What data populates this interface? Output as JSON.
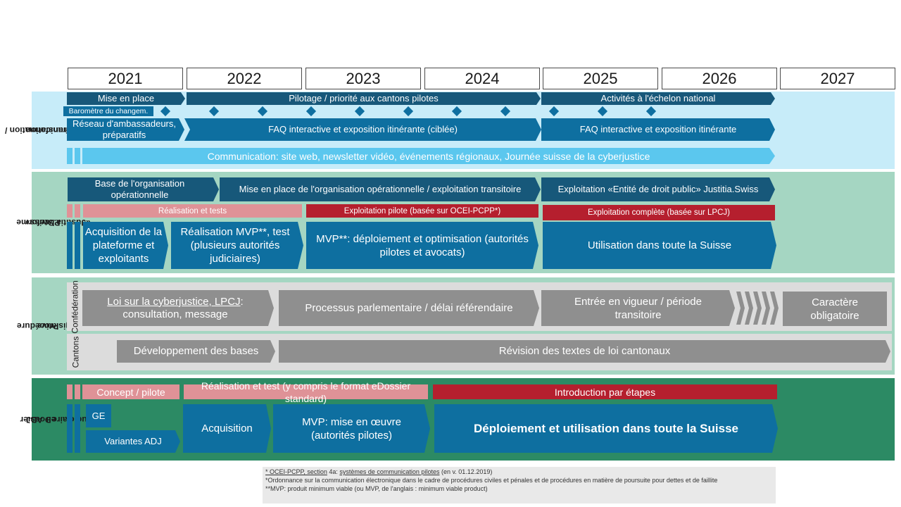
{
  "years": [
    "2021",
    "2022",
    "2023",
    "2024",
    "2025",
    "2026",
    "2027"
  ],
  "colors": {
    "dark_blue": "#17587a",
    "mid_blue": "#0e6fa0",
    "light_blue": "#5bc7ee",
    "pink": "#df9297",
    "red": "#b51f2e",
    "gray": "#8f8f8f",
    "green_band": "#a5d6c2",
    "dark_green": "#2c8a64",
    "light_cyan_band": "#c7ecf9"
  },
  "sections": {
    "transformation": {
      "label_line1": "Transformation /",
      "label_line2": "Communication",
      "mise_en_place": "Mise en place",
      "pilotage": "Pilotage / priorité aux cantons pilotes",
      "activites": "Activités à l'échelon national",
      "barometre": "Baromètre du changem.",
      "reseau": "Réseau d'ambassadeurs, préparatifs",
      "faq_ciblee": "FAQ interactive et exposition itinérante (ciblée)",
      "faq": "FAQ interactive et exposition itinérante",
      "communication": "Communication: site web, newsletter vidéo, événements régionaux, Journée suisse de la cyberjustice"
    },
    "plateforme": {
      "label_line1": "Plateforme",
      "label_line2": "«Justitia.Swiss»",
      "base_org": "Base de l'organisation opérationnelle",
      "mise_en_place_org": "Mise en place de l'organisation opérationnelle / exploitation transitoire",
      "exploitation_entite": "Exploitation «Entité de droit public» Justitia.Swiss",
      "realisation_tests": "Réalisation et tests",
      "exploitation_pilote": "Exploitation pilote (basée sur OCEI-PCPP*)",
      "exploitation_complete": "Exploitation complète (basée sur LPCJ)",
      "acquisition": "Acquisition de la plateforme et exploitants",
      "realisation_mvp": "Réalisation MVP**, test (plusieurs autorités judiciaires)",
      "mvp_deploiement": "MVP**: déploiement et optimisation (autorités pilotes et avocats)",
      "utilisation": "Utilisation dans toute la Suisse"
    },
    "procedure": {
      "label_line1": "Procédure",
      "label_line2": "législative",
      "confederation": "Confédération",
      "cantons": "Cantons",
      "lpcj_link": "Loi sur la cyberjustice, LPCJ",
      "lpcj_rest": ": consultation, message",
      "processus": "Processus parlementaire / délai référendaire",
      "entree": "Entrée en vigueur / période transitoire",
      "caractere": "Caractère obligatoire",
      "developpement": "Développement des bases",
      "revision": "Révision des textes de loi cantonaux"
    },
    "edossier": {
      "label_line1": "eDossier",
      "label_line2": "judiciaire + ADJ",
      "concept": "Concept / pilote",
      "realisation": "Réalisation et test (y compris le format eDossier standard)",
      "introduction": "Introduction par étapes",
      "ge": "GE",
      "variantes": "Variantes ADJ",
      "acquisition": "Acquisition",
      "mvp": "MVP: mise en œuvre (autorités pilotes)",
      "deploiement": "Déploiement et utilisation dans toute la Suisse"
    }
  },
  "footnotes": {
    "line1_a": "* OCEI-PCPP, section",
    "line1_b": " 4a: ",
    "line1_c": "systèmes de communication pilotes",
    "line1_d": " (en v. 01.12.2019)",
    "line2": "*Ordonnance sur la communication électronique dans le cadre de procédures civiles et pénales et de procédures en matière de poursuite pour dettes et de faillite",
    "line3": "**MVP: produit minimum viable (ou MVP, de l'anglais : minimum viable product)"
  }
}
